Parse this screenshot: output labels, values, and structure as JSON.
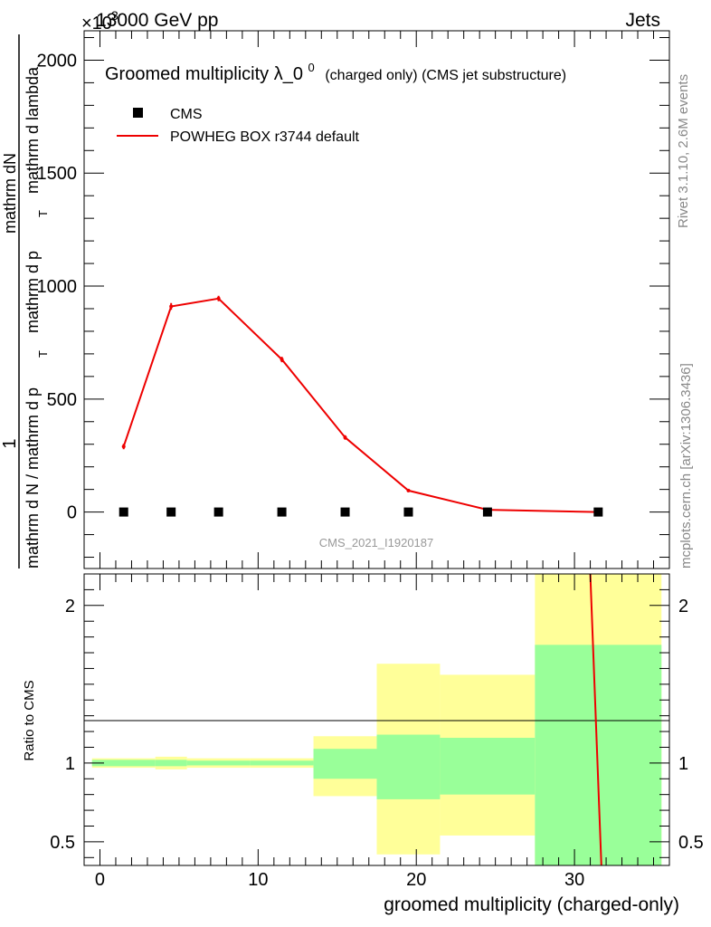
{
  "header": {
    "left": "13000 GeV pp",
    "right": "Jets",
    "exponent": "×10",
    "exponent_power": "3"
  },
  "side": {
    "rivet": "Rivet 3.1.10,  2.6M events",
    "mcplots": "mcplots.cern.ch [arXiv:1306.3436]"
  },
  "watermark": "CMS_2021_I1920187",
  "chart_data": [
    {
      "type": "line",
      "title": "Groomed multiplicity",
      "title_symbol": "λ_0",
      "title_sup": "0",
      "title_suffix": "(charged only) (CMS jet substructure)",
      "ylabel_numerator": "1",
      "ylabel_numerator_b": "mathrm dN",
      "ylabel_denominator": "mathrm d N / mathrm d p",
      "ylabel_denominator_b": "mathrm d p",
      "ylabel_tail": "mathrm d lambda",
      "ylabel_sub": "T",
      "ylim": [
        -250,
        2130
      ],
      "yticks": [
        0,
        500,
        1000,
        1500,
        2000
      ],
      "ytick_labels": [
        "0",
        "500",
        "1000",
        "1500",
        "2000"
      ],
      "grid": false,
      "legend_position": "top-left",
      "series": [
        {
          "name": "CMS",
          "style": "markers",
          "color": "#000000",
          "x": [
            1.5,
            4.5,
            7.5,
            11.5,
            15.5,
            19.5,
            24.5,
            31.5
          ],
          "y": [
            0,
            0,
            0,
            0,
            0,
            0,
            0,
            0
          ]
        },
        {
          "name": "POWHEG BOX r3744 default",
          "style": "line",
          "color": "#ee0000",
          "x": [
            1.5,
            4.5,
            7.5,
            11.5,
            15.5,
            19.5,
            24.5,
            31.5
          ],
          "y": [
            290,
            910,
            945,
            675,
            330,
            95,
            10,
            0
          ],
          "yerr": [
            12,
            15,
            12,
            12,
            10,
            5,
            2,
            1
          ]
        }
      ]
    },
    {
      "type": "area",
      "ylabel": "Ratio to CMS",
      "xlabel": "groomed multiplicity (charged-only)",
      "xlim": [
        -1,
        36
      ],
      "xticks": [
        0,
        10,
        20,
        30
      ],
      "xtick_labels": [
        "0",
        "10",
        "20",
        "30"
      ],
      "ylim": [
        0.35,
        2.2
      ],
      "yticks": [
        0.5,
        1,
        2
      ],
      "ytick_labels": [
        "0.5",
        "1",
        "2"
      ],
      "grid": false,
      "bins": [
        {
          "x0": -0.5,
          "x1": 3.5,
          "yellow": [
            0.97,
            1.03
          ],
          "green": [
            0.98,
            1.02
          ]
        },
        {
          "x0": 3.5,
          "x1": 5.5,
          "yellow": [
            0.96,
            1.04
          ],
          "green": [
            0.98,
            1.02
          ]
        },
        {
          "x0": 5.5,
          "x1": 9.5,
          "yellow": [
            0.97,
            1.03
          ],
          "green": [
            0.985,
            1.015
          ]
        },
        {
          "x0": 9.5,
          "x1": 13.5,
          "yellow": [
            0.97,
            1.03
          ],
          "green": [
            0.985,
            1.015
          ]
        },
        {
          "x0": 13.5,
          "x1": 17.5,
          "yellow": [
            0.79,
            1.17
          ],
          "green": [
            0.9,
            1.09
          ]
        },
        {
          "x0": 17.5,
          "x1": 21.5,
          "yellow": [
            0.42,
            1.63
          ],
          "green": [
            0.77,
            1.18
          ]
        },
        {
          "x0": 21.5,
          "x1": 27.5,
          "yellow": [
            0.54,
            1.56
          ],
          "green": [
            0.8,
            1.16
          ]
        },
        {
          "x0": 27.5,
          "x1": 35.5,
          "yellow": [
            0.35,
            2.2
          ],
          "green": [
            0.35,
            1.75
          ]
        }
      ],
      "ratio_line": {
        "name": "POWHEG BOX r3744 default",
        "color": "#ee0000",
        "x": [
          31,
          31.7
        ],
        "y": [
          2.2,
          0.35
        ]
      }
    }
  ]
}
